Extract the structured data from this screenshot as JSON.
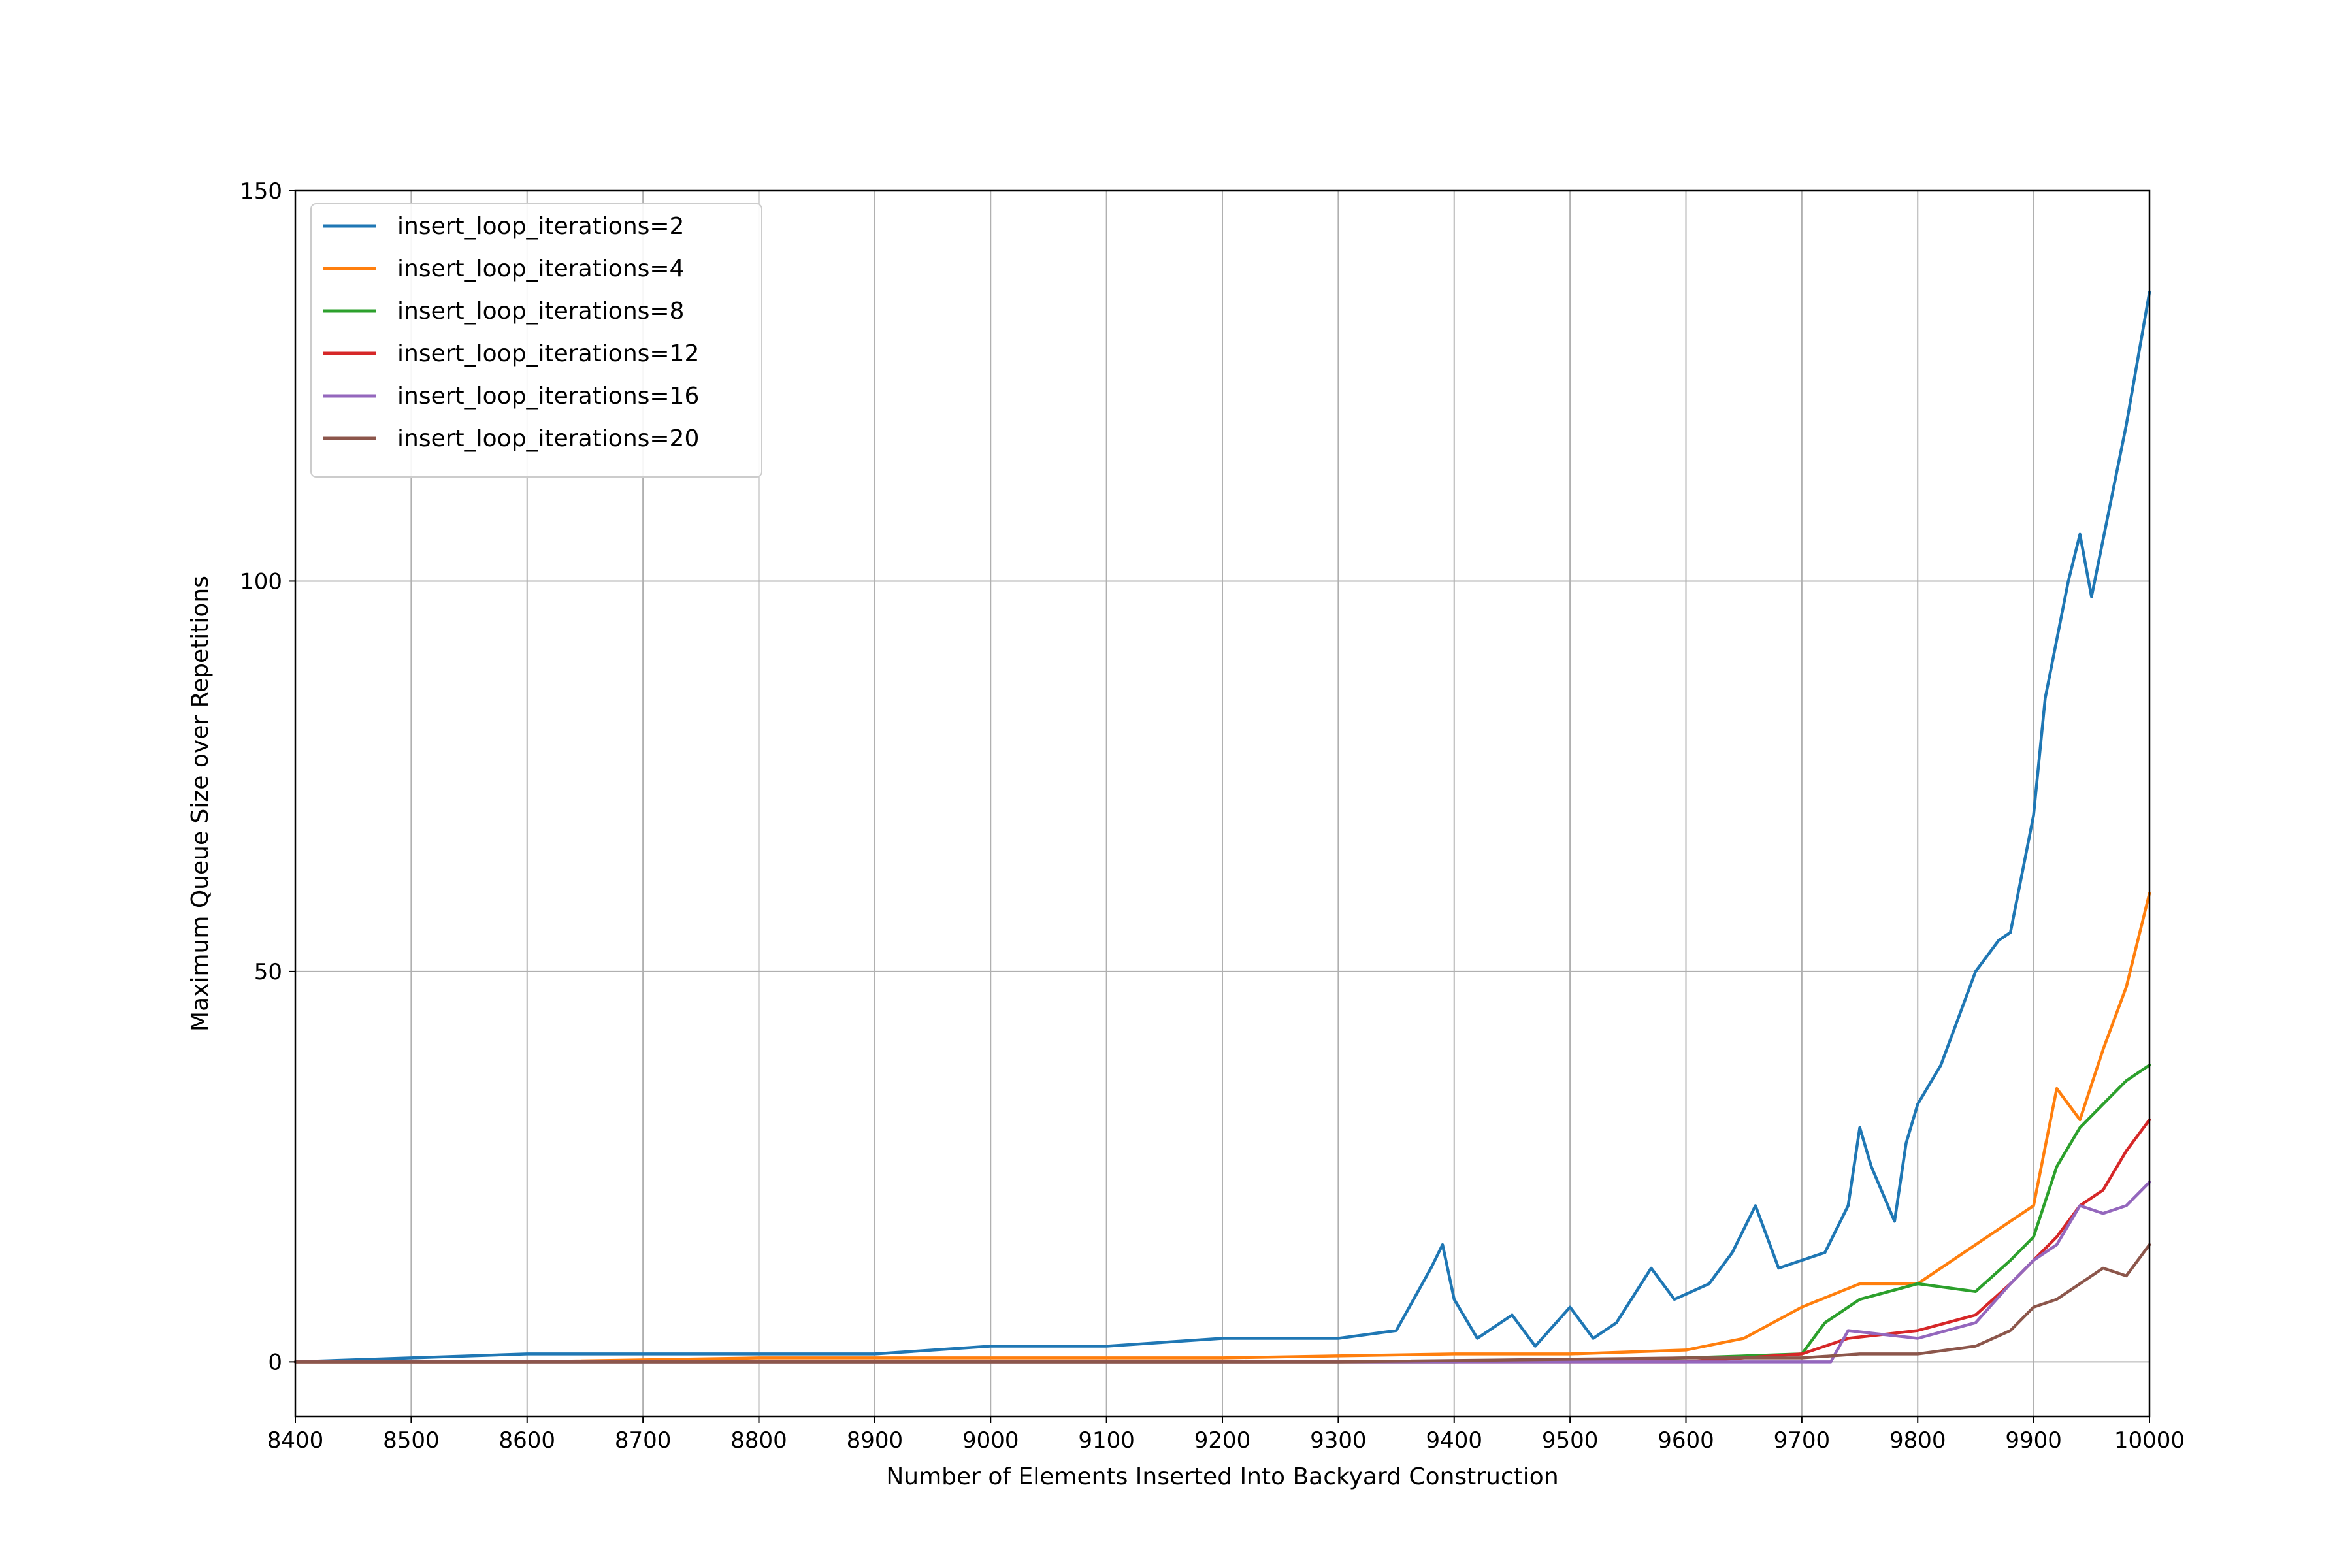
{
  "chart_data": {
    "type": "line",
    "title": "",
    "xlabel": "Number of Elements Inserted Into Backyard Construction",
    "ylabel": "Maximum Queue Size over Repetitions",
    "xlim": [
      8400,
      10000
    ],
    "ylim": [
      -7,
      150
    ],
    "xticks": [
      8400,
      8500,
      8600,
      8700,
      8800,
      8900,
      9000,
      9100,
      9200,
      9300,
      9400,
      9500,
      9600,
      9700,
      9800,
      9900,
      10000
    ],
    "yticks": [
      0,
      50,
      100,
      150
    ],
    "grid": true,
    "legend_position": "upper-left",
    "series": [
      {
        "name": "insert_loop_iterations=2",
        "color": "#1f77b4",
        "x": [
          8400,
          8500,
          8600,
          8700,
          8800,
          8900,
          9000,
          9100,
          9200,
          9300,
          9350,
          9380,
          9390,
          9400,
          9420,
          9450,
          9470,
          9500,
          9520,
          9540,
          9570,
          9590,
          9620,
          9640,
          9660,
          9680,
          9700,
          9720,
          9740,
          9750,
          9760,
          9780,
          9790,
          9800,
          9820,
          9850,
          9870,
          9880,
          9900,
          9910,
          9930,
          9940,
          9950,
          9980,
          10000
        ],
        "y": [
          0,
          0.5,
          1,
          1,
          1,
          1,
          2,
          2,
          3,
          3,
          4,
          12,
          15,
          8,
          3,
          6,
          2,
          7,
          3,
          5,
          12,
          8,
          10,
          14,
          20,
          12,
          13,
          14,
          20,
          30,
          25,
          18,
          28,
          33,
          38,
          50,
          54,
          55,
          70,
          85,
          100,
          106,
          98,
          120,
          137
        ]
      },
      {
        "name": "insert_loop_iterations=4",
        "color": "#ff7f0e",
        "x": [
          8400,
          8600,
          8800,
          9000,
          9200,
          9400,
          9500,
          9600,
          9650,
          9700,
          9750,
          9800,
          9850,
          9880,
          9900,
          9920,
          9940,
          9960,
          9980,
          10000
        ],
        "y": [
          0,
          0,
          0.5,
          0.5,
          0.5,
          1,
          1,
          1.5,
          3,
          7,
          10,
          10,
          15,
          18,
          20,
          35,
          31,
          40,
          48,
          60
        ]
      },
      {
        "name": "insert_loop_iterations=8",
        "color": "#2ca02c",
        "x": [
          8400,
          9000,
          9400,
          9600,
          9700,
          9720,
          9750,
          9800,
          9850,
          9880,
          9900,
          9920,
          9940,
          9960,
          9980,
          10000
        ],
        "y": [
          0,
          0,
          0,
          0.5,
          1,
          5,
          8,
          10,
          9,
          13,
          16,
          25,
          30,
          33,
          36,
          38
        ]
      },
      {
        "name": "insert_loop_iterations=12",
        "color": "#d62728",
        "x": [
          8400,
          9000,
          9600,
          9700,
          9720,
          9740,
          9800,
          9850,
          9880,
          9900,
          9920,
          9940,
          9960,
          9980,
          10000
        ],
        "y": [
          0,
          0,
          0,
          1,
          2,
          3,
          4,
          6,
          10,
          13,
          16,
          20,
          22,
          27,
          31
        ]
      },
      {
        "name": "insert_loop_iterations=16",
        "color": "#9467bd",
        "x": [
          8400,
          9600,
          9620,
          9700,
          9725,
          9740,
          9800,
          9850,
          9880,
          9900,
          9920,
          9940,
          9960,
          9980,
          10000
        ],
        "y": [
          0,
          0,
          0,
          0,
          0,
          4,
          3,
          5,
          10,
          13,
          15,
          20,
          19,
          20,
          23
        ]
      },
      {
        "name": "insert_loop_iterations=20",
        "color": "#8c564b",
        "x": [
          8400,
          9300,
          9600,
          9700,
          9750,
          9800,
          9850,
          9880,
          9900,
          9920,
          9940,
          9960,
          9980,
          10000
        ],
        "y": [
          0,
          0,
          0.5,
          0.5,
          1,
          1,
          2,
          4,
          7,
          8,
          10,
          12,
          11,
          15
        ]
      }
    ]
  }
}
